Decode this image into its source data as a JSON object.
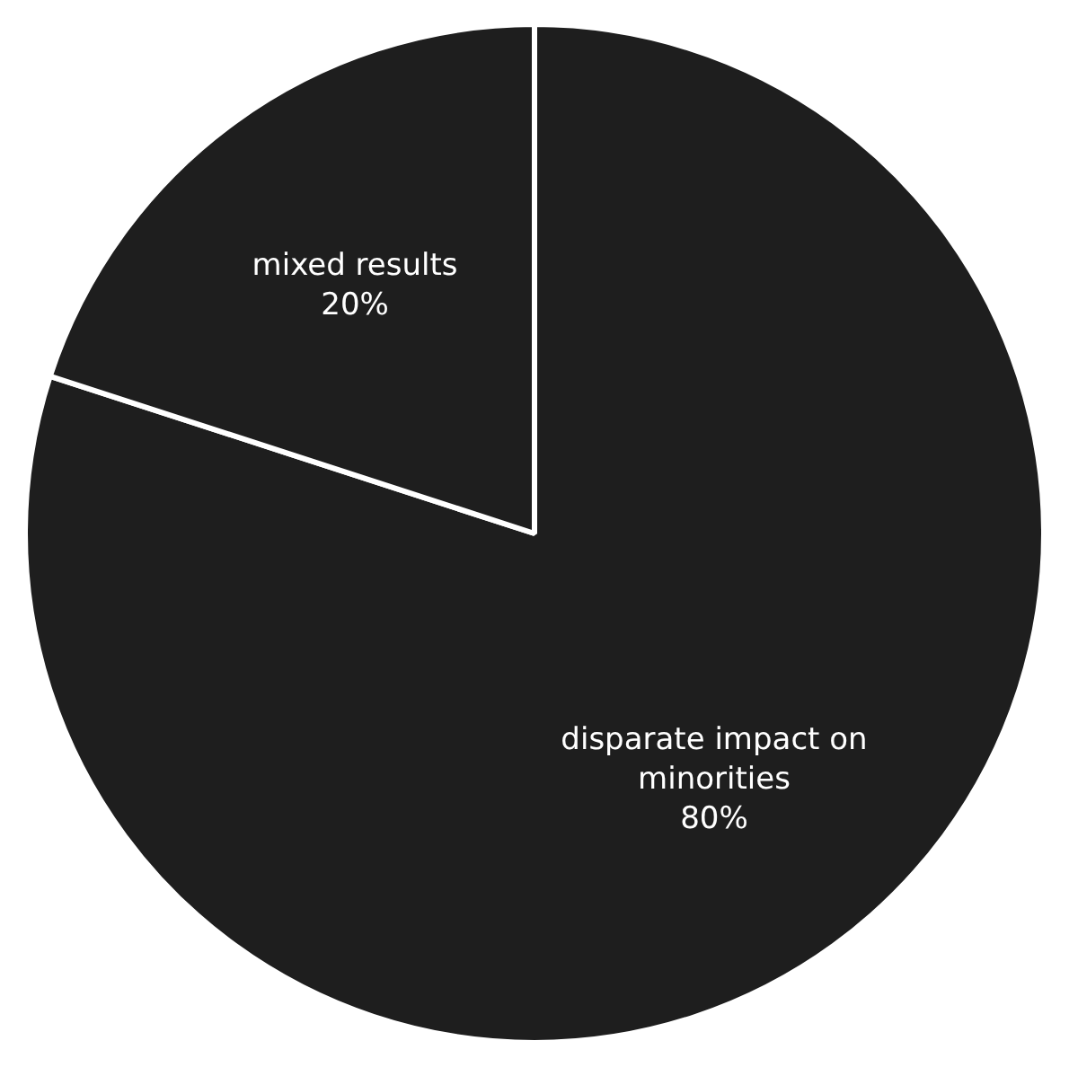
{
  "chart_data": {
    "type": "pie",
    "categories": [
      "disparate impact on minorities",
      "mixed results"
    ],
    "values": [
      80,
      20
    ],
    "value_labels": [
      "80%",
      "20%"
    ],
    "colors": [
      "#1e1e1e",
      "#1e1e1e"
    ]
  }
}
